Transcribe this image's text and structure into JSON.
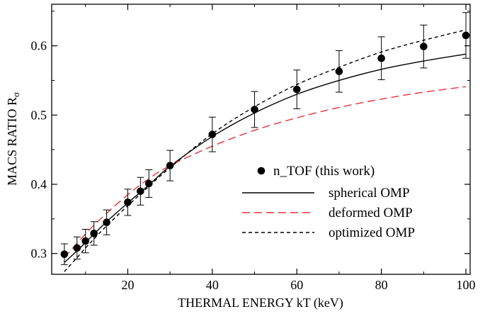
{
  "chart_data": {
    "type": "scatter",
    "title": "",
    "xlabel": "THERMAL ENERGY  kT (keV)",
    "ylabel_main": "MACS RATIO R",
    "ylabel_sub": "σ",
    "xlim": [
      2,
      101
    ],
    "ylim": [
      0.27,
      0.66
    ],
    "xticks": [
      20,
      40,
      60,
      80,
      100
    ],
    "yticks": [
      0.3,
      0.4,
      0.5,
      0.6
    ],
    "xtick_labels": [
      "20",
      "40",
      "60",
      "80",
      "100"
    ],
    "ytick_labels": [
      "0.3",
      "0.4",
      "0.5",
      "0.6"
    ],
    "grid": false,
    "legend_position": "bottom-right",
    "series": [
      {
        "name": "n_TOF (this work)",
        "kind": "points",
        "color": "#000000",
        "x": [
          5,
          8,
          10,
          12,
          15,
          20,
          23,
          25,
          30,
          40,
          50,
          60,
          70,
          80,
          90,
          100
        ],
        "y": [
          0.299,
          0.308,
          0.318,
          0.329,
          0.345,
          0.374,
          0.39,
          0.401,
          0.427,
          0.472,
          0.508,
          0.537,
          0.563,
          0.582,
          0.599,
          0.615
        ],
        "err": [
          0.015,
          0.016,
          0.017,
          0.017,
          0.018,
          0.019,
          0.02,
          0.02,
          0.022,
          0.025,
          0.026,
          0.028,
          0.03,
          0.031,
          0.031,
          0.033
        ]
      },
      {
        "name": "spherical OMP",
        "kind": "line",
        "color": "#000000",
        "dash": "solid",
        "x": [
          5,
          8,
          10,
          12,
          15,
          20,
          25,
          30,
          40,
          50,
          60,
          70,
          80,
          90,
          100
        ],
        "y": [
          0.287,
          0.304,
          0.316,
          0.328,
          0.346,
          0.373,
          0.399,
          0.426,
          0.469,
          0.503,
          0.53,
          0.55,
          0.566,
          0.578,
          0.588
        ]
      },
      {
        "name": "deformed OMP",
        "kind": "line",
        "color": "#e8323c",
        "dash": "dashed",
        "x": [
          5,
          8,
          10,
          12,
          15,
          20,
          25,
          30,
          40,
          50,
          60,
          70,
          80,
          90,
          100
        ],
        "y": [
          0.294,
          0.315,
          0.328,
          0.341,
          0.358,
          0.385,
          0.408,
          0.427,
          0.455,
          0.478,
          0.496,
          0.511,
          0.523,
          0.533,
          0.541
        ]
      },
      {
        "name": "optimized OMP",
        "kind": "line",
        "color": "#000000",
        "dash": "short-dashed",
        "x": [
          5,
          8,
          10,
          12,
          15,
          20,
          25,
          30,
          40,
          50,
          60,
          70,
          80,
          90,
          100
        ],
        "y": [
          0.274,
          0.294,
          0.308,
          0.321,
          0.34,
          0.369,
          0.397,
          0.424,
          0.473,
          0.512,
          0.544,
          0.569,
          0.591,
          0.608,
          0.623
        ]
      }
    ]
  }
}
